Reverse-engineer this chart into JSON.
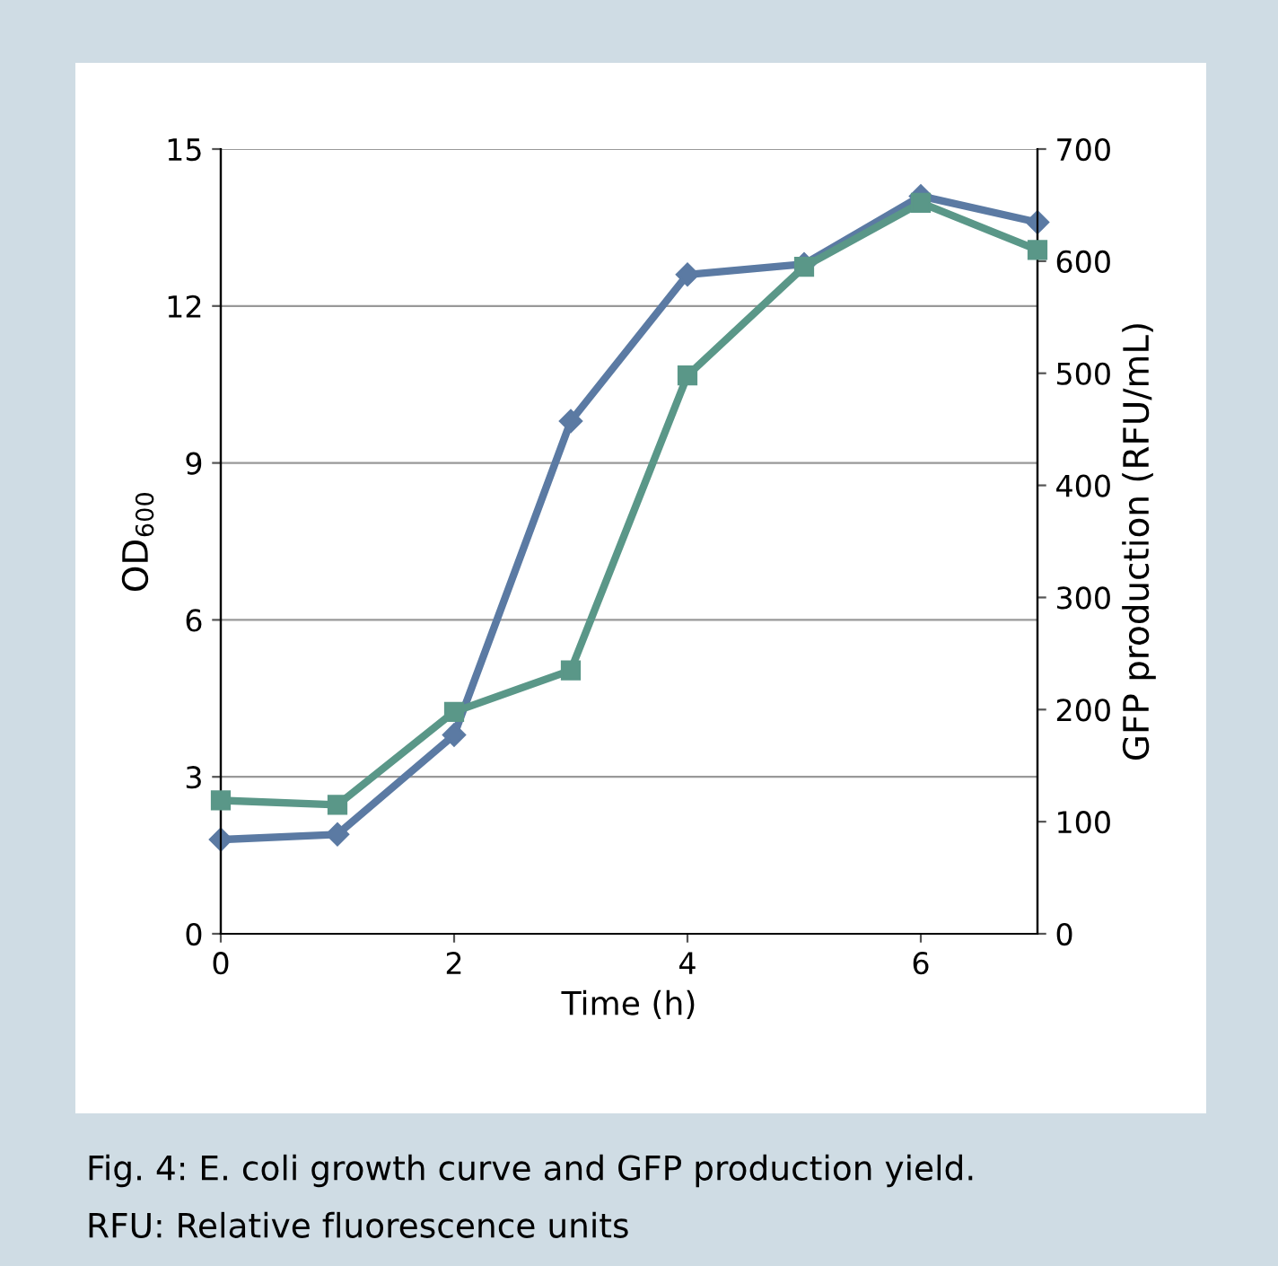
{
  "chart_data": {
    "type": "line",
    "title": "Fig. 4: E. coli growth curve and GFP production yield.",
    "annotations": [
      "RFU: Relative fluorescence units"
    ],
    "xlabel": "Time (h)",
    "ylabel": "OD$_{600}$",
    "y2label": "GFP production (RFU/mL)",
    "x": [
      0,
      1,
      2,
      3,
      4,
      5,
      6,
      7
    ],
    "series": [
      {
        "color": "#5b7aa3",
        "values": [
          1.8,
          1.9,
          3.8,
          9.8,
          12.6,
          12.8,
          14.1,
          13.6
        ],
        "marker": "diamond"
      },
      {
        "color": "#5a9788",
        "values": [
          119,
          115,
          198,
          235,
          498,
          595,
          652,
          610
        ],
        "marker": "square",
        "axis": "y2"
      }
    ],
    "xlim": [
      0,
      7
    ],
    "xticks": [
      0,
      2,
      4,
      6
    ],
    "ylim": [
      0,
      15
    ],
    "yticks": [
      0,
      3,
      6,
      9,
      12,
      15
    ],
    "y2lim": [
      0,
      700
    ],
    "y2ticks": [
      0,
      100,
      200,
      300,
      400,
      500,
      600,
      700
    ],
    "grid": "y",
    "legend": false
  }
}
